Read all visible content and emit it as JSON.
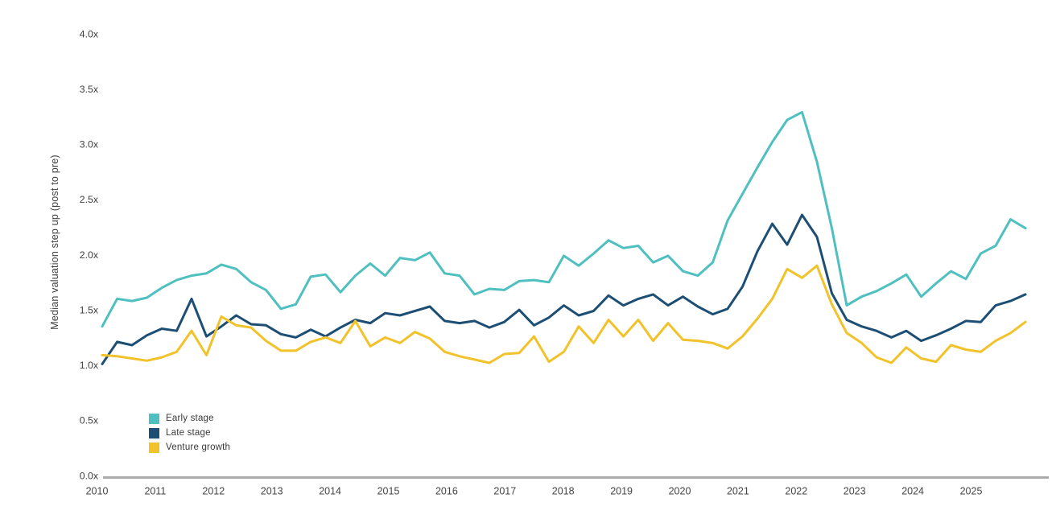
{
  "chart_data": {
    "type": "line",
    "title": "",
    "ylabel": "Median valuation step up (post to pre)",
    "frequency": "quarterly",
    "start_period": "2010 Q1",
    "end_period": "2025 Q3",
    "x_tick_labels": [
      "2010",
      "2011",
      "2012",
      "2013",
      "2014",
      "2015",
      "2016",
      "2017",
      "2018",
      "2019",
      "2020",
      "2021",
      "2022",
      "2023",
      "2024",
      "2025"
    ],
    "y_ticks": {
      "values": [
        0,
        0.5,
        1.0,
        1.5,
        2.0,
        2.5,
        3.0,
        3.5,
        4.0
      ],
      "labels": [
        "0.0x",
        "0.5x",
        "1.0x",
        "1.5x",
        "2.0x",
        "2.5x",
        "3.0x",
        "3.5x",
        "4.0x"
      ]
    },
    "ylim": [
      0,
      4.25
    ],
    "grid": false,
    "legend_position": "lower-left",
    "axis_color": "#ababab",
    "text_color": "#3e3e3e",
    "series": [
      {
        "name": "Early stage",
        "color": "#4fbfc0",
        "values": [
          1.35,
          1.6,
          1.58,
          1.61,
          1.7,
          1.77,
          1.81,
          1.83,
          1.91,
          1.87,
          1.75,
          1.68,
          1.51,
          1.55,
          1.8,
          1.82,
          1.66,
          1.81,
          1.92,
          1.81,
          1.97,
          1.95,
          2.02,
          1.83,
          1.81,
          1.64,
          1.69,
          1.68,
          1.76,
          1.77,
          1.75,
          1.99,
          1.9,
          2.01,
          2.13,
          2.06,
          2.08,
          1.93,
          1.99,
          1.85,
          1.81,
          1.93,
          2.31,
          2.55,
          2.79,
          3.02,
          3.22,
          3.29,
          2.84,
          2.24,
          1.54,
          1.62,
          1.67,
          1.74,
          1.82,
          1.62,
          1.74,
          1.85,
          1.78,
          2.01,
          2.08,
          2.32,
          2.24
        ]
      },
      {
        "name": "Late stage",
        "color": "#1d4e74",
        "values": [
          1.01,
          1.21,
          1.18,
          1.27,
          1.33,
          1.31,
          1.6,
          1.26,
          1.35,
          1.45,
          1.37,
          1.36,
          1.28,
          1.25,
          1.32,
          1.26,
          1.34,
          1.41,
          1.38,
          1.47,
          1.45,
          1.49,
          1.53,
          1.4,
          1.38,
          1.4,
          1.34,
          1.39,
          1.5,
          1.36,
          1.43,
          1.54,
          1.45,
          1.49,
          1.63,
          1.54,
          1.6,
          1.64,
          1.54,
          1.62,
          1.53,
          1.46,
          1.51,
          1.71,
          2.03,
          2.28,
          2.09,
          2.36,
          2.16,
          1.65,
          1.41,
          1.35,
          1.31,
          1.25,
          1.31,
          1.22,
          1.27,
          1.33,
          1.4,
          1.39,
          1.54,
          1.58,
          1.64
        ]
      },
      {
        "name": "Venture growth",
        "color": "#f2c22a",
        "values": [
          1.09,
          1.08,
          1.06,
          1.04,
          1.07,
          1.12,
          1.31,
          1.09,
          1.44,
          1.36,
          1.34,
          1.22,
          1.13,
          1.13,
          1.21,
          1.25,
          1.2,
          1.4,
          1.17,
          1.25,
          1.2,
          1.3,
          1.24,
          1.12,
          1.08,
          1.05,
          1.02,
          1.1,
          1.11,
          1.26,
          1.03,
          1.12,
          1.35,
          1.2,
          1.41,
          1.26,
          1.41,
          1.22,
          1.38,
          1.23,
          1.22,
          1.2,
          1.15,
          1.26,
          1.42,
          1.6,
          1.87,
          1.79,
          1.9,
          1.55,
          1.29,
          1.2,
          1.07,
          1.02,
          1.16,
          1.06,
          1.03,
          1.18,
          1.14,
          1.12,
          1.22,
          1.29,
          1.39
        ]
      }
    ]
  }
}
